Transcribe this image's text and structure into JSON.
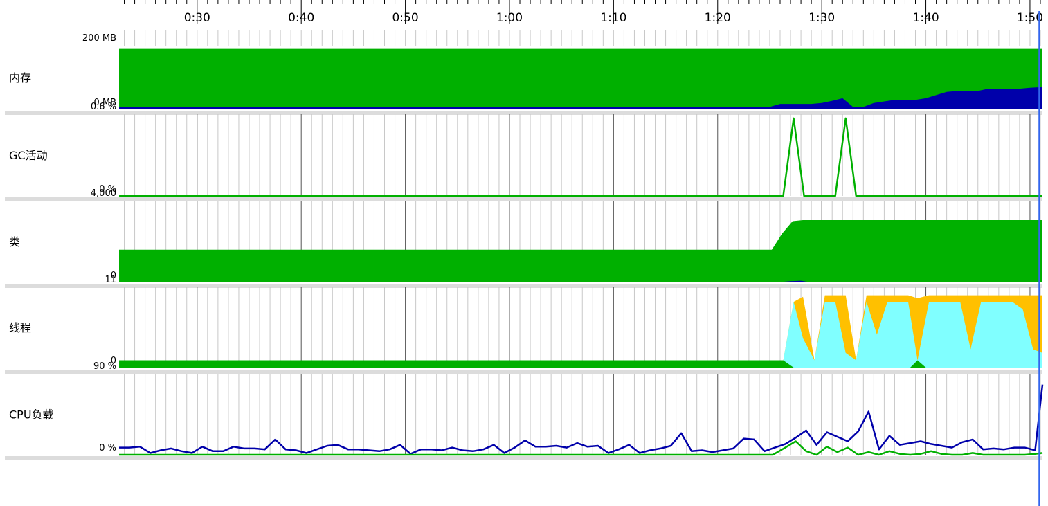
{
  "colors": {
    "green": "#00b000",
    "navy": "#0000aa",
    "gold": "#ffc000",
    "cyan": "#80ffff",
    "separator": "#dcdcdc",
    "grid_minor": "#c8c8c8",
    "grid_major": "#555555",
    "cursor": "#3366ee"
  },
  "time_axis": {
    "labels": [
      "0:30",
      "0:40",
      "0:50",
      "1:00",
      "1:10",
      "1:20",
      "1:30",
      "1:40",
      "1:50"
    ],
    "visible_range_s": [
      22.5,
      111.2
    ],
    "cursor_s": 110.9
  },
  "tracks": [
    {
      "key": "memory",
      "label": "内存",
      "max_label": "200 MB",
      "min_label": "0 MB"
    },
    {
      "key": "gc",
      "label": "GC活动",
      "max_label": "0.6 %",
      "min_label": "0 %"
    },
    {
      "key": "classes",
      "label": "类",
      "max_label": "4,000",
      "min_label": "0"
    },
    {
      "key": "threads",
      "label": "线程",
      "max_label": "11",
      "min_label": "0"
    },
    {
      "key": "cpu",
      "label": "CPU负载",
      "max_label": "90 %",
      "min_label": "0 %"
    }
  ],
  "chart_data": [
    {
      "type": "area",
      "key": "memory",
      "ylim": [
        0,
        200
      ],
      "series": [
        {
          "color": "green",
          "x": [
            22.5,
            111.2
          ],
          "y": [
            190,
            190
          ]
        },
        {
          "color": "navy",
          "x": [
            22.5,
            85,
            86,
            88,
            89,
            90,
            91,
            92,
            93,
            94,
            95,
            96,
            97,
            98,
            99,
            100,
            101,
            102,
            103,
            104,
            105,
            106,
            107,
            108,
            109,
            110,
            111.2
          ],
          "y": [
            8,
            8,
            17,
            17,
            17,
            20,
            27,
            35,
            8,
            8,
            20,
            25,
            30,
            30,
            30,
            35,
            45,
            55,
            58,
            58,
            58,
            65,
            65,
            65,
            65,
            68,
            70
          ]
        }
      ]
    },
    {
      "type": "line",
      "key": "gc",
      "ylim": [
        0,
        0.6
      ],
      "series": [
        {
          "color": "green",
          "x": [
            22.5,
            86.3,
            87.3,
            88.3,
            91.3,
            92.3,
            93.3,
            111.2
          ],
          "y": [
            0,
            0,
            0.57,
            0,
            0,
            0.57,
            0,
            0
          ]
        }
      ]
    },
    {
      "type": "area",
      "key": "classes",
      "ylim": [
        0,
        4000
      ],
      "series": [
        {
          "color": "green",
          "x": [
            22.5,
            85.2,
            86.2,
            87.2,
            88.2,
            111.2
          ],
          "y": [
            1600,
            1600,
            2400,
            3000,
            3050,
            3050
          ]
        },
        {
          "color": "navy",
          "x": [
            85.5,
            87,
            88,
            89
          ],
          "y": [
            0,
            60,
            80,
            0
          ]
        }
      ]
    },
    {
      "type": "area",
      "key": "threads",
      "ylim": [
        0,
        11
      ],
      "series": [
        {
          "name": "",
          "color": "gold",
          "x": [
            86.3,
            87.3,
            88.2,
            89.3,
            90.3,
            92.3,
            93.3,
            94.3,
            95.3,
            96.3,
            97.3,
            98.3,
            99.2,
            100.3,
            101.3,
            103.3,
            104.3,
            105.3,
            106.3,
            107.3,
            108.3,
            109.3,
            110.3,
            111.2
          ],
          "y": [
            1,
            9,
            9.7,
            1,
            9.9,
            9.9,
            1,
            9.9,
            9.9,
            9.9,
            9.9,
            9.9,
            9.5,
            9.9,
            9.9,
            9.9,
            9.9,
            9.9,
            9.9,
            9.9,
            9.9,
            9.9,
            9.9,
            9.9
          ]
        },
        {
          "name": "",
          "color": "cyan",
          "x": [
            86.3,
            87.3,
            88.2,
            89.3,
            90.3,
            91.3,
            92.3,
            93.3,
            94.3,
            95.3,
            96.3,
            97.3,
            98.3,
            99.2,
            100.3,
            101.3,
            102.3,
            103.3,
            104.3,
            105.3,
            106.3,
            107.3,
            108.3,
            109.3,
            110.3,
            111.2
          ],
          "y": [
            1,
            9,
            4,
            1,
            9,
            9,
            2,
            1,
            9,
            4.5,
            9,
            9,
            9,
            1,
            9,
            9,
            9,
            9,
            2.5,
            9,
            9,
            9,
            9,
            8,
            2.5,
            2
          ]
        },
        {
          "name": "",
          "color": "green",
          "x": [
            22.5,
            86.3,
            87.3,
            98.5,
            99.2,
            100.0,
            111.2
          ],
          "y": [
            1,
            1,
            0,
            0,
            1,
            0,
            0
          ]
        }
      ]
    },
    {
      "type": "line",
      "key": "cpu",
      "ylim": [
        0,
        90
      ],
      "series": [
        {
          "color": "navy",
          "x": [
            22.5,
            23.5,
            24.5,
            25.5,
            26.5,
            27.5,
            28.5,
            29.5,
            30.5,
            31.5,
            32.5,
            33.5,
            34.5,
            35.5,
            36.5,
            37.5,
            38.5,
            39.5,
            40.5,
            41.5,
            42.5,
            43.5,
            44.5,
            45.5,
            46.5,
            47.5,
            48.5,
            49.5,
            50.5,
            51.5,
            52.5,
            53.5,
            54.5,
            55.5,
            56.5,
            57.5,
            58.5,
            59.5,
            60.5,
            61.5,
            62.5,
            63.5,
            64.5,
            65.5,
            66.5,
            67.5,
            68.5,
            69.5,
            70.5,
            71.5,
            72.5,
            73.5,
            74.5,
            75.5,
            76.5,
            77.5,
            78.5,
            79.5,
            80.5,
            81.5,
            82.5,
            83.5,
            84.5,
            85.5,
            86.5,
            87.5,
            88.5,
            89.5,
            90.5,
            91.5,
            92.5,
            93.5,
            94.5,
            95.5,
            96.5,
            97.5,
            98.5,
            99.5,
            100.5,
            101.5,
            102.5,
            103.5,
            104.5,
            105.5,
            106.5,
            107.5,
            108.5,
            109.5,
            110.5,
            111.2
          ],
          "y": [
            8,
            8,
            9,
            2,
            5,
            7,
            4,
            2,
            9,
            4,
            4,
            9,
            7,
            7,
            6,
            17,
            6,
            5,
            2,
            6,
            10,
            11,
            6,
            6,
            5,
            4,
            6,
            11,
            1,
            6,
            6,
            5,
            8,
            5,
            4,
            6,
            11,
            2,
            8,
            16,
            9,
            9,
            10,
            8,
            13,
            9,
            10,
            2,
            6,
            11,
            2,
            5,
            7,
            10,
            24,
            4,
            5,
            3,
            5,
            7,
            18,
            17,
            4,
            8,
            12,
            19,
            27,
            11,
            25,
            20,
            15,
            26,
            48,
            6,
            21,
            11,
            13,
            15,
            12,
            10,
            8,
            14,
            17,
            6,
            7,
            6,
            8,
            8,
            5,
            78
          ]
        },
        {
          "color": "green",
          "x": [
            22.5,
            85.3,
            86.5,
            87.5,
            88.5,
            89.5,
            90.5,
            91.5,
            92.5,
            93.5,
            94.5,
            95.5,
            96.5,
            97.5,
            98.5,
            99.5,
            100.5,
            101.5,
            102.5,
            103.5,
            104.5,
            105.5,
            106.5,
            107.5,
            108.5,
            109.5,
            110.5,
            111.2
          ],
          "y": [
            0,
            0,
            8,
            15,
            4,
            0,
            9,
            3,
            8,
            0,
            3,
            0,
            4,
            1,
            0,
            1,
            4,
            1,
            0,
            0,
            2,
            0,
            0,
            0,
            0,
            0,
            1,
            2
          ]
        }
      ]
    }
  ]
}
